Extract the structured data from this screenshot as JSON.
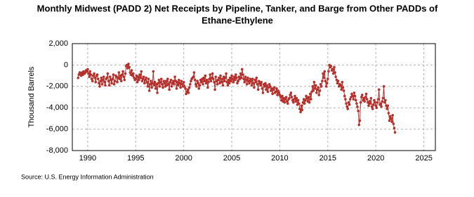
{
  "chart_data": {
    "type": "line",
    "title": [
      "Monthly Midwest (PADD 2) Net Receipts by Pipeline, Tanker, and Barge from Other PADDs of",
      "Ethane-Ethylene"
    ],
    "y_label": "Thousand Barrels",
    "source": "Source: U.S. Energy Information Administration",
    "color": "#b5302b",
    "grid": true,
    "xlim": [
      1988.4,
      2026.2
    ],
    "xticks": [
      1990,
      1995,
      2000,
      2005,
      2010,
      2015,
      2020,
      2025
    ],
    "ylim": [
      -8000,
      2000
    ],
    "yticks": [
      {
        "value": 2000,
        "label": "2,000"
      },
      0,
      {
        "value": -2000,
        "label": "-2,000"
      },
      {
        "value": -4000,
        "label": "-4,000"
      },
      {
        "value": -6000,
        "label": "-6,000"
      },
      {
        "value": -8000,
        "label": "-8,000"
      }
    ],
    "x": [
      1989,
      1989.08,
      1989.17,
      1989.25,
      1989.33,
      1989.42,
      1989.5,
      1989.58,
      1989.67,
      1989.75,
      1989.83,
      1989.92,
      1990,
      1990.08,
      1990.17,
      1990.25,
      1990.33,
      1990.42,
      1990.5,
      1990.58,
      1990.67,
      1990.75,
      1990.83,
      1990.92,
      1991,
      1991.08,
      1991.17,
      1991.25,
      1991.33,
      1991.42,
      1991.5,
      1991.58,
      1991.67,
      1991.75,
      1991.83,
      1991.92,
      1992,
      1992.08,
      1992.17,
      1992.25,
      1992.33,
      1992.42,
      1992.5,
      1992.58,
      1992.67,
      1992.75,
      1992.83,
      1992.92,
      1993,
      1993.08,
      1993.17,
      1993.25,
      1993.33,
      1993.42,
      1993.5,
      1993.58,
      1993.67,
      1993.75,
      1993.83,
      1993.92,
      1994,
      1994.08,
      1994.17,
      1994.25,
      1994.33,
      1994.42,
      1994.5,
      1994.58,
      1994.67,
      1994.75,
      1994.83,
      1994.92,
      1995,
      1995.08,
      1995.17,
      1995.25,
      1995.33,
      1995.42,
      1995.5,
      1995.58,
      1995.67,
      1995.75,
      1995.83,
      1995.92,
      1996,
      1996.08,
      1996.17,
      1996.25,
      1996.33,
      1996.42,
      1996.5,
      1996.58,
      1996.67,
      1996.75,
      1996.83,
      1996.92,
      1997,
      1997.08,
      1997.17,
      1997.25,
      1997.33,
      1997.42,
      1997.5,
      1997.58,
      1997.67,
      1997.75,
      1997.83,
      1997.92,
      1998,
      1998.08,
      1998.17,
      1998.25,
      1998.33,
      1998.42,
      1998.5,
      1998.58,
      1998.67,
      1998.75,
      1998.83,
      1998.92,
      1999,
      1999.08,
      1999.17,
      1999.25,
      1999.33,
      1999.42,
      1999.5,
      1999.58,
      1999.67,
      1999.75,
      1999.83,
      1999.92,
      2000,
      2000.08,
      2000.17,
      2000.25,
      2000.33,
      2000.42,
      2000.5,
      2000.58,
      2000.67,
      2000.75,
      2000.83,
      2000.92,
      2001,
      2001.08,
      2001.17,
      2001.25,
      2001.33,
      2001.42,
      2001.5,
      2001.58,
      2001.67,
      2001.75,
      2001.83,
      2001.92,
      2002,
      2002.08,
      2002.17,
      2002.25,
      2002.33,
      2002.42,
      2002.5,
      2002.58,
      2002.67,
      2002.75,
      2002.83,
      2002.92,
      2003,
      2003.08,
      2003.17,
      2003.25,
      2003.33,
      2003.42,
      2003.5,
      2003.58,
      2003.67,
      2003.75,
      2003.83,
      2003.92,
      2004,
      2004.08,
      2004.17,
      2004.25,
      2004.33,
      2004.42,
      2004.5,
      2004.58,
      2004.67,
      2004.75,
      2004.83,
      2004.92,
      2005,
      2005.08,
      2005.17,
      2005.25,
      2005.33,
      2005.42,
      2005.5,
      2005.58,
      2005.67,
      2005.75,
      2005.83,
      2005.92,
      2006,
      2006.08,
      2006.17,
      2006.25,
      2006.33,
      2006.42,
      2006.5,
      2006.58,
      2006.67,
      2006.75,
      2006.83,
      2006.92,
      2007,
      2007.08,
      2007.17,
      2007.25,
      2007.33,
      2007.42,
      2007.5,
      2007.58,
      2007.67,
      2007.75,
      2007.83,
      2007.92,
      2008,
      2008.08,
      2008.17,
      2008.25,
      2008.33,
      2008.42,
      2008.5,
      2008.58,
      2008.67,
      2008.75,
      2008.83,
      2008.92,
      2009,
      2009.08,
      2009.17,
      2009.25,
      2009.33,
      2009.42,
      2009.5,
      2009.58,
      2009.67,
      2009.75,
      2009.83,
      2009.92,
      2010,
      2010.08,
      2010.17,
      2010.25,
      2010.33,
      2010.42,
      2010.5,
      2010.58,
      2010.67,
      2010.75,
      2010.83,
      2010.92,
      2011,
      2011.08,
      2011.17,
      2011.25,
      2011.33,
      2011.42,
      2011.5,
      2011.58,
      2011.67,
      2011.75,
      2011.83,
      2011.92,
      2012,
      2012.08,
      2012.17,
      2012.25,
      2012.33,
      2012.42,
      2012.5,
      2012.58,
      2012.67,
      2012.75,
      2012.83,
      2012.92,
      2013,
      2013.08,
      2013.17,
      2013.25,
      2013.33,
      2013.42,
      2013.5,
      2013.58,
      2013.67,
      2013.75,
      2013.83,
      2013.92,
      2014,
      2014.08,
      2014.17,
      2014.25,
      2014.33,
      2014.42,
      2014.5,
      2014.58,
      2014.67,
      2014.75,
      2014.83,
      2014.92,
      2015,
      2015.08,
      2015.17,
      2015.25,
      2015.33,
      2015.42,
      2015.5,
      2015.58,
      2015.67,
      2015.75,
      2015.83,
      2015.92,
      2016,
      2016.08,
      2016.17,
      2016.25,
      2016.33,
      2016.42,
      2016.5,
      2016.58,
      2016.67,
      2016.75,
      2016.83,
      2016.92,
      2017,
      2017.08,
      2017.17,
      2017.25,
      2017.33,
      2017.42,
      2017.5,
      2017.58,
      2017.67,
      2017.75,
      2017.83,
      2017.92,
      2018,
      2018.08,
      2018.17,
      2018.25,
      2018.33,
      2018.42,
      2018.5,
      2018.58,
      2018.67,
      2018.75,
      2018.83,
      2018.92,
      2019,
      2019.08,
      2019.17,
      2019.25,
      2019.33,
      2019.42,
      2019.5,
      2019.58,
      2019.67,
      2019.75,
      2019.83,
      2019.92,
      2020,
      2020.08,
      2020.17,
      2020.25,
      2020.33,
      2020.42,
      2020.5,
      2020.58,
      2020.67,
      2020.75,
      2020.83,
      2020.92,
      2021,
      2021.08,
      2021.17,
      2021.25,
      2021.33,
      2021.42,
      2021.5,
      2021.58,
      2021.67,
      2021.75,
      2021.83,
      2021.92,
      2022
    ],
    "values": [
      -1200,
      -900,
      -700,
      -800,
      -1000,
      -700,
      -900,
      -600,
      -800,
      -700,
      -500,
      -600,
      -400,
      -800,
      -1100,
      -600,
      -900,
      -1300,
      -1500,
      -1000,
      -800,
      -1200,
      -1600,
      -1000,
      -900,
      -1300,
      -1700,
      -2000,
      -1500,
      -1200,
      -1800,
      -1400,
      -1100,
      -1600,
      -1900,
      -1300,
      -1200,
      -800,
      -1500,
      -1900,
      -1100,
      -1400,
      -1700,
      -1300,
      -900,
      -1800,
      -1500,
      -1000,
      -1100,
      -1600,
      -1200,
      -700,
      -1300,
      -1000,
      -1500,
      -900,
      -600,
      -1100,
      -1400,
      -800,
      -100,
      0,
      -300,
      100,
      -200,
      -700,
      -900,
      -500,
      -1000,
      -800,
      -1200,
      -1400,
      -1300,
      -1000,
      -1600,
      -1100,
      -1400,
      -900,
      -1200,
      -600,
      -1500,
      -1300,
      -1100,
      -1700,
      -1400,
      -1200,
      -1600,
      -2000,
      -1300,
      -2400,
      -1800,
      -1500,
      -2100,
      -1700,
      -600,
      -1900,
      -1600,
      -2200,
      -1800,
      -2600,
      -1700,
      -1400,
      -2000,
      -1600,
      -1300,
      -1800,
      -2100,
      -1500,
      -1700,
      -2000,
      -1500,
      -1900,
      -1300,
      -1800,
      -2300,
      -1600,
      -1400,
      -2000,
      -1700,
      -1500,
      -1800,
      -1100,
      -1500,
      -2200,
      -1600,
      -1900,
      -1400,
      -1700,
      -2100,
      -1500,
      -1800,
      -2000,
      -1600,
      -2000,
      -2200,
      -2700,
      -2500,
      -2300,
      -2600,
      -2100,
      -1800,
      -1500,
      -1300,
      -1200,
      -1100,
      -700,
      -1400,
      -1800,
      -2000,
      -1500,
      -1700,
      -2200,
      -1900,
      -1400,
      -1600,
      -1300,
      -1800,
      -1200,
      -1500,
      -1000,
      -1700,
      -1400,
      -2100,
      -1600,
      -1300,
      -900,
      -1500,
      -1200,
      -800,
      -1300,
      -1600,
      -2300,
      -1100,
      -1500,
      -1800,
      -1400,
      -1200,
      -1700,
      -1000,
      -1600,
      -1300,
      -1900,
      -1100,
      -1500,
      -1200,
      -800,
      -1600,
      -1900,
      -1400,
      -1700,
      -1200,
      -1500,
      -1000,
      -1300,
      -1600,
      -1100,
      -1400,
      -900,
      -1200,
      -1700,
      -1500,
      -1100,
      -1300,
      -800,
      -1200,
      -400,
      -900,
      -1300,
      -1600,
      -1100,
      -1400,
      -1800,
      -1200,
      -1500,
      -1700,
      -1300,
      -1500,
      -1900,
      -1300,
      -1700,
      -2100,
      -1400,
      -1600,
      -1200,
      -1800,
      -2300,
      -1500,
      -1700,
      -1900,
      -1600,
      -2200,
      -2600,
      -1800,
      -2000,
      -1700,
      -2300,
      -1900,
      -2500,
      -2100,
      -1800,
      -2000,
      -2400,
      -2200,
      -2700,
      -2300,
      -2100,
      -2600,
      -2500,
      -2200,
      -2800,
      -2400,
      -2600,
      -2800,
      -3000,
      -3300,
      -2900,
      -3400,
      -3100,
      -3500,
      -3200,
      -3000,
      -3400,
      -3600,
      -3200,
      -3100,
      -2800,
      -2600,
      -3000,
      -3300,
      -3500,
      -3200,
      -2900,
      -3400,
      -3100,
      -3700,
      -3300,
      -3600,
      -4100,
      -4400,
      -3800,
      -4200,
      -3500,
      -3200,
      -3600,
      -3300,
      -2900,
      -3100,
      -3400,
      -3000,
      -3500,
      -2700,
      -3200,
      -2500,
      -2000,
      -2400,
      -1600,
      -2200,
      -1900,
      -2600,
      -2300,
      -2100,
      -2800,
      -2400,
      -1800,
      -2000,
      -1500,
      -800,
      -1200,
      -600,
      -1500,
      -2000,
      -1700,
      -1300,
      -600,
      0,
      -200,
      -100,
      -500,
      -400,
      -800,
      -200,
      -700,
      -1100,
      -1400,
      -1700,
      -1500,
      -2000,
      -1800,
      -1900,
      -2300,
      -1600,
      -2100,
      -2400,
      -2900,
      -3200,
      -3600,
      -3900,
      -4100,
      -3500,
      -3700,
      -3200,
      -3000,
      -2700,
      -2900,
      -3200,
      -2600,
      -2900,
      -3300,
      -3600,
      -3900,
      -4300,
      -5600,
      -5200,
      -3500,
      -3000,
      -2800,
      -3300,
      -3100,
      -3400,
      -3000,
      -2700,
      -3200,
      -3500,
      -3800,
      -3400,
      -3600,
      -3100,
      -3900,
      -4100,
      -3700,
      -3300,
      -3500,
      -3800,
      -4000,
      -3500,
      -3200,
      -2300,
      -3700,
      -3600,
      -3900,
      -3400,
      -3100,
      -2000,
      -3500,
      -3300,
      -3800,
      -4100,
      -3800,
      -4500,
      -5200,
      -4800,
      -5000,
      -5300,
      -4700,
      -5500,
      -5900,
      -6300
    ]
  }
}
